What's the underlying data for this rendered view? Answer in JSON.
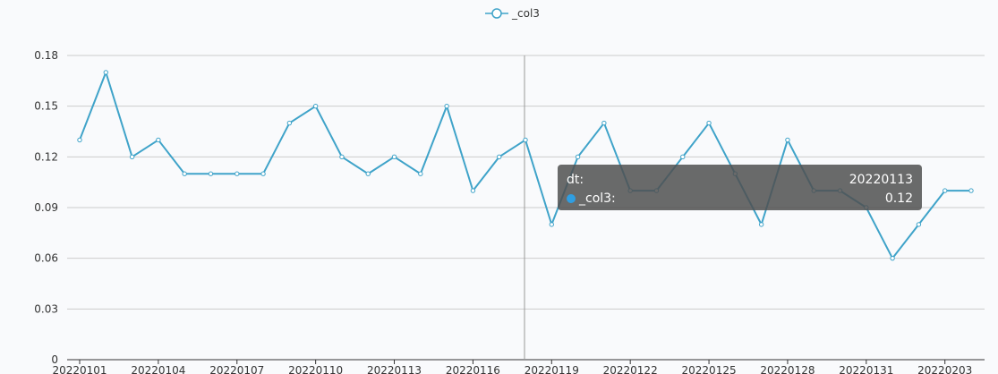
{
  "legend": {
    "label": "_col3",
    "icon": "line-circle-icon"
  },
  "colors": {
    "series": "#3fa3c9",
    "axis": "#333333",
    "grid": "#cccccc",
    "pointer": "#999999",
    "tooltip_dot": "#2f9ee2"
  },
  "chart_data": {
    "type": "line",
    "x": [
      "20220101",
      "20220102",
      "20220103",
      "20220104",
      "20220105",
      "20220106",
      "20220107",
      "20220108",
      "20220109",
      "20220110",
      "20220111",
      "20220112",
      "20220113",
      "20220114",
      "20220115",
      "20220116",
      "20220117",
      "20220118",
      "20220119",
      "20220120",
      "20220121",
      "20220122",
      "20220123",
      "20220124",
      "20220125",
      "20220126",
      "20220127",
      "20220128",
      "20220129",
      "20220130",
      "20220131",
      "20220201",
      "20220202",
      "20220203",
      "20220204"
    ],
    "x_tick_labels": [
      "20220101",
      "20220104",
      "20220107",
      "20220110",
      "20220113",
      "20220116",
      "20220119",
      "20220122",
      "20220125",
      "20220128",
      "20220131",
      "20220203"
    ],
    "series": [
      {
        "name": "_col3",
        "values": [
          0.13,
          0.17,
          0.12,
          0.13,
          0.11,
          0.11,
          0.11,
          0.11,
          0.14,
          0.15,
          0.12,
          0.11,
          0.12,
          0.11,
          0.15,
          0.1,
          0.12,
          0.13,
          0.08,
          0.12,
          0.14,
          0.1,
          0.1,
          0.12,
          0.14,
          0.11,
          0.08,
          0.13,
          0.1,
          0.1,
          0.09,
          0.06,
          0.08,
          0.1,
          0.1
        ]
      }
    ],
    "y_ticks": [
      "0",
      "0.03",
      "0.06",
      "0.09",
      "0.12",
      "0.15",
      "0.18"
    ],
    "ylim": [
      0,
      0.18
    ],
    "grid": true,
    "legend_position": "top-center"
  },
  "tooltip": {
    "axis_label": "dt:",
    "axis_value": "20220113",
    "series_label": "_col3:",
    "series_value": "0.12",
    "pointer_index": 17
  }
}
